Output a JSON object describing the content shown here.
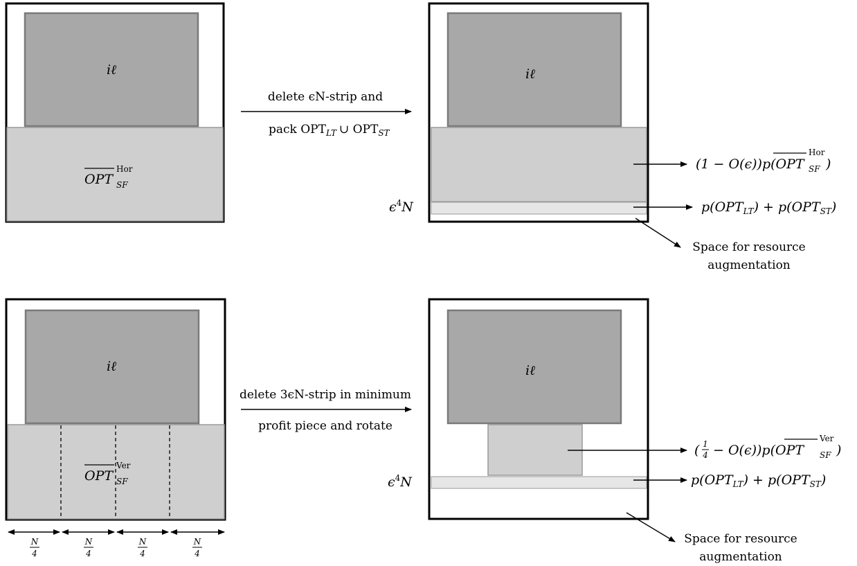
{
  "top": {
    "left_item_label": "iℓ",
    "left_hor_label": "OPT",
    "left_hor_sup": "Hor",
    "left_hor_sub": "SF",
    "transition_line1": "delete ϵN-strip and",
    "transition_line2": "pack OPT",
    "transition_line2_sub1": "LT",
    "transition_line2_union": "∪ OPT",
    "transition_line2_sub2": "ST",
    "right_item_label": "iℓ",
    "strip_label": "ϵ",
    "strip_label_sup": "4",
    "strip_label_tail": "N",
    "annot_hor_prefix": "(1 − O(ϵ))p(",
    "annot_hor_opt": "OPT",
    "annot_hor_sup": "Hor",
    "annot_hor_sub": "SF",
    "annot_hor_suffix": ")",
    "annot_strip": "p(OPT",
    "annot_strip_sub1": "LT",
    "annot_strip_mid": ") + p(OPT",
    "annot_strip_sub2": "ST",
    "annot_strip_end": ")",
    "space_line1": "Space for resource",
    "space_line2": "augmentation"
  },
  "bottom": {
    "left_item_label": "iℓ",
    "left_ver_label": "OPT",
    "left_ver_sup": "Ver",
    "left_ver_sub": "SF",
    "width_labels": [
      "N",
      "N",
      "N",
      "N"
    ],
    "width_denoms": [
      "4",
      "4",
      "4",
      "4"
    ],
    "transition_line1": "delete 3ϵN-strip in minimum",
    "transition_line2": "profit piece and rotate",
    "right_item_label": "iℓ",
    "strip_label": "ϵ",
    "strip_label_sup": "4",
    "strip_label_tail": "N",
    "annot_ver_prefix": "(",
    "annot_ver_frac_num": "1",
    "annot_ver_frac_den": "4",
    "annot_ver_mid": "− O(ϵ))p(",
    "annot_ver_opt": "OPT",
    "annot_ver_sup": "Ver",
    "annot_ver_sub": "SF",
    "annot_ver_suffix": ")",
    "annot_strip": "p(OPT",
    "annot_strip_sub1": "LT",
    "annot_strip_mid": ") + p(OPT",
    "annot_strip_sub2": "ST",
    "annot_strip_end": ")",
    "space_line1": "Space for resource",
    "space_line2": "augmentation"
  }
}
